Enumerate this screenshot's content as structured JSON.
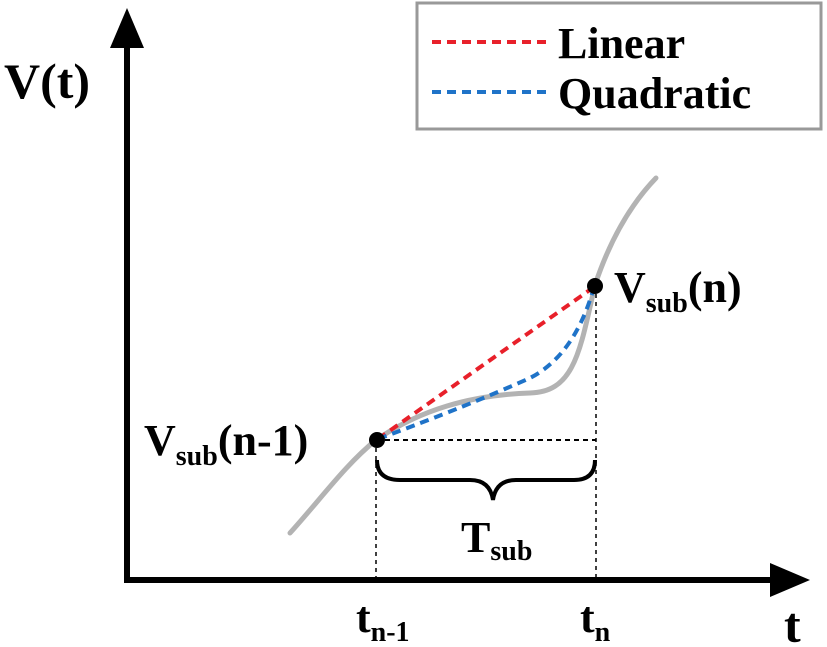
{
  "axes": {
    "y_label": "V(t)",
    "x_label": "t"
  },
  "legend": {
    "items": [
      {
        "label": "Linear",
        "color": "#e8202a"
      },
      {
        "label": "Quadratic",
        "color": "#1f73c8"
      }
    ]
  },
  "points": {
    "start": {
      "main": "V",
      "sub": "sub",
      "suffix": "(n-1)"
    },
    "end": {
      "main": "V",
      "sub": "sub",
      "suffix": "(n)"
    }
  },
  "interval": {
    "main": "T",
    "sub": "sub"
  },
  "ticks": [
    {
      "main": "t",
      "sub": "n-1"
    },
    {
      "main": "t",
      "sub": "n"
    }
  ],
  "colors": {
    "curve": "#b3b3b3",
    "axis": "#000000"
  }
}
